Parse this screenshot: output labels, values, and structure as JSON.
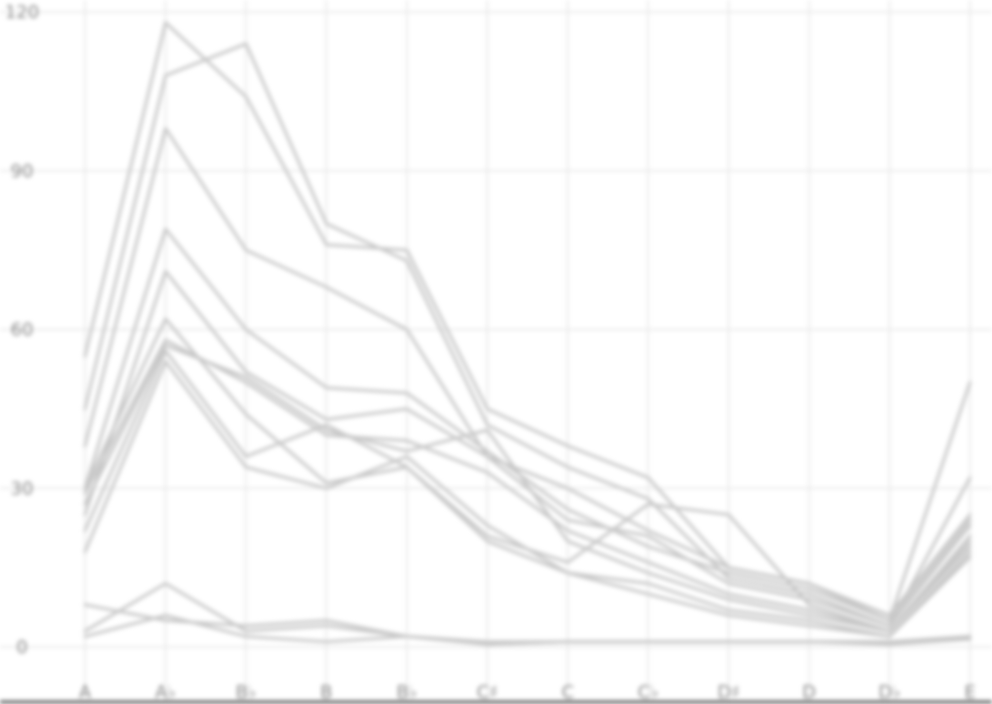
{
  "chart_data": {
    "type": "line",
    "title": "",
    "xlabel": "",
    "ylabel": "",
    "categories": [
      "A",
      "A♭",
      "B♭",
      "B",
      "B♭",
      "C♯",
      "C",
      "C♭",
      "D♯",
      "D",
      "D♭",
      "E"
    ],
    "ylim": [
      0,
      120
    ],
    "yticks": [
      0,
      30,
      60,
      90,
      120
    ],
    "grid": true,
    "legend": "none",
    "series_color": "#c8c8c8",
    "series": [
      {
        "values": [
          55,
          118,
          104,
          76,
          75,
          45,
          38,
          32,
          15,
          12,
          5,
          50
        ]
      },
      {
        "values": [
          45,
          108,
          114,
          80,
          73,
          42,
          34,
          28,
          13,
          10,
          4,
          32
        ]
      },
      {
        "values": [
          38,
          98,
          75,
          68,
          60,
          36,
          30,
          22,
          15,
          12,
          6,
          25
        ]
      },
      {
        "values": [
          30,
          79,
          60,
          49,
          48,
          37,
          26,
          19,
          14,
          11,
          5,
          24
        ]
      },
      {
        "values": [
          25,
          71,
          52,
          43,
          45,
          36,
          24,
          21,
          12,
          9,
          4,
          23
        ]
      },
      {
        "values": [
          29,
          58,
          50,
          40,
          39,
          33,
          22,
          16,
          10,
          7,
          3,
          21
        ]
      },
      {
        "values": [
          27,
          57,
          51,
          41,
          37,
          41,
          20,
          14,
          9,
          6,
          3,
          20
        ]
      },
      {
        "values": [
          22,
          56,
          36,
          42,
          34,
          21,
          16,
          27,
          25,
          8,
          3,
          19
        ]
      },
      {
        "values": [
          18,
          54,
          34,
          30,
          36,
          23,
          14,
          12,
          7,
          5,
          2,
          18
        ]
      },
      {
        "values": [
          30,
          62,
          44,
          31,
          34,
          20,
          14,
          10,
          6,
          4,
          2,
          17
        ]
      },
      {
        "values": [
          3,
          12,
          3,
          4,
          2,
          1,
          1,
          1,
          1,
          1,
          1,
          2
        ]
      },
      {
        "values": [
          8,
          5,
          4,
          5,
          2,
          0.5,
          1,
          1,
          1,
          1,
          1,
          2
        ]
      },
      {
        "values": [
          2,
          6,
          2,
          1,
          2,
          0.5,
          1,
          1,
          1,
          1,
          0.5,
          1.5
        ]
      }
    ]
  }
}
